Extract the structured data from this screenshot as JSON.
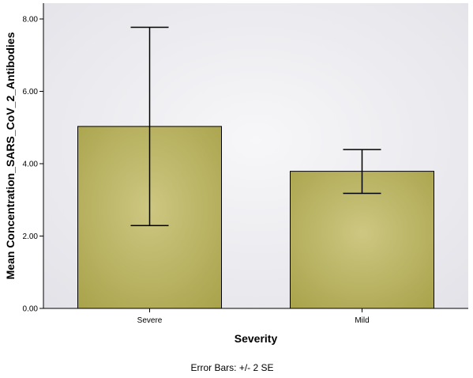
{
  "chart_data": {
    "type": "bar",
    "categories": [
      "Severe",
      "Mild"
    ],
    "values": [
      5.03,
      3.79
    ],
    "error_low": [
      2.29,
      3.18
    ],
    "error_high": [
      7.77,
      4.39
    ],
    "ylim": [
      0,
      8
    ],
    "yticks": [
      "0.00",
      "2.00",
      "4.00",
      "6.00",
      "8.00"
    ],
    "xlabel": "Severity",
    "ylabel": "Mean Concentration_SARS_CoV_2_Antibodies",
    "footnote": "Error Bars: +/- 2 SE",
    "grid": false,
    "bar_color": "#c6bf6a",
    "bar_edge_color": "#9e9838",
    "plot_background": "#ececf0"
  }
}
